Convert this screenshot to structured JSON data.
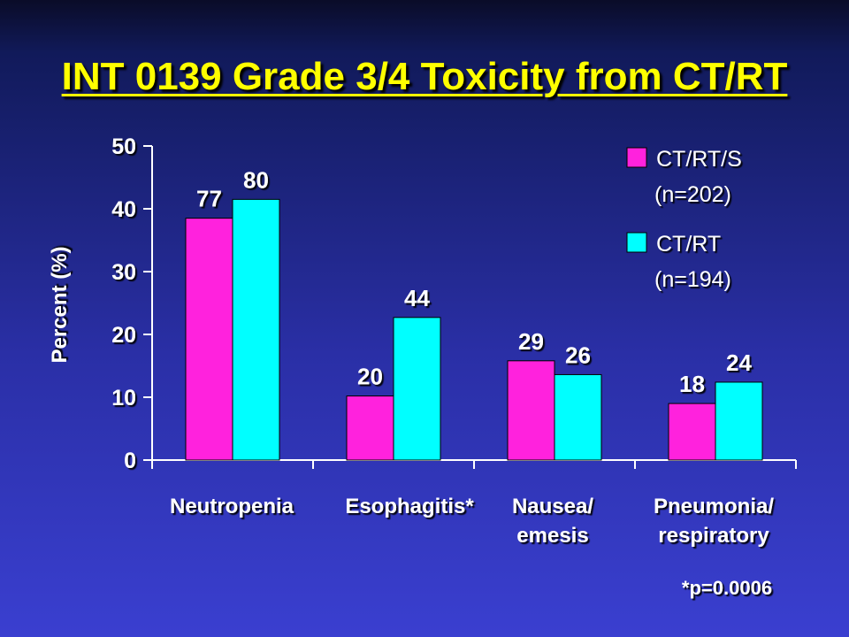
{
  "title": "INT 0139 Grade 3/4 Toxicity from CT/RT",
  "footnote": "*p=0.0006",
  "colors": {
    "title": "#ffff00",
    "series1": "#ff22dd",
    "series2": "#00ffff",
    "axis": "#ffffff"
  },
  "chart_data": {
    "type": "bar",
    "title": "INT 0139 Grade 3/4 Toxicity from CT/RT",
    "ylabel": "Percent (%)",
    "xlabel": "",
    "ylim": [
      0,
      50
    ],
    "yticks": [
      0,
      10,
      20,
      30,
      40,
      50
    ],
    "categories": [
      [
        "Neutropenia"
      ],
      [
        "Esophagitis*"
      ],
      [
        "Nausea/",
        "emesis"
      ],
      [
        "Pneumonia/",
        "respiratory"
      ]
    ],
    "series": [
      {
        "name": [
          "CT/RT/S",
          "(n=202)"
        ],
        "values": [
          38.5,
          10.2,
          15.8,
          9.0
        ],
        "labels": [
          "77",
          "20",
          "29",
          "18"
        ]
      },
      {
        "name": [
          "CT/RT",
          "(n=194)"
        ],
        "values": [
          41.5,
          22.7,
          13.6,
          12.4
        ],
        "labels": [
          "80",
          "44",
          "26",
          "24"
        ]
      }
    ],
    "legend_position": "top-right",
    "grid": false
  }
}
